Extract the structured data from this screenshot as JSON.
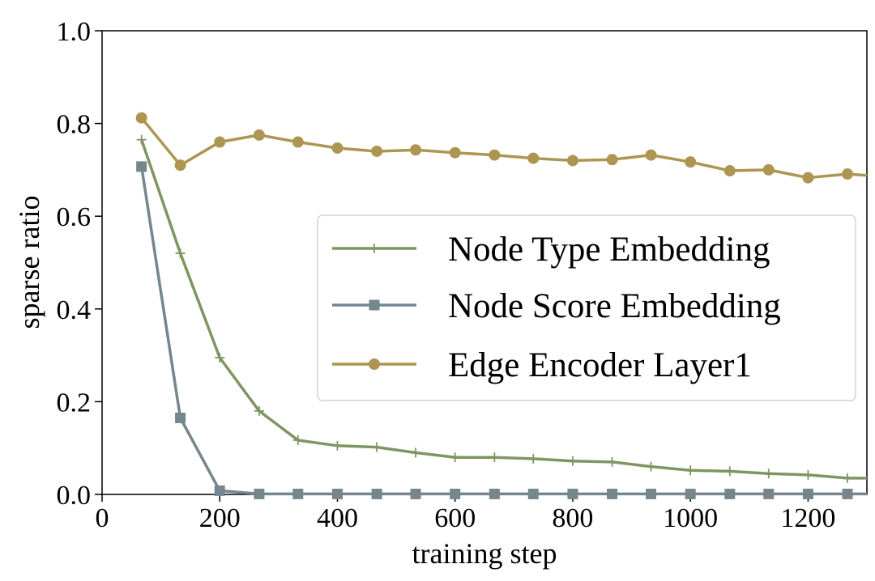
{
  "chart_data": {
    "type": "line",
    "title": "",
    "xlabel": "training step",
    "ylabel": "sparse ratio",
    "xlim": [
      0,
      1300
    ],
    "ylim": [
      0.0,
      1.0
    ],
    "xticks": [
      0,
      200,
      400,
      600,
      800,
      1000,
      1200
    ],
    "xtick_labels": [
      "0",
      "200",
      "400",
      "600",
      "800",
      "1000",
      "1200"
    ],
    "yticks": [
      0.0,
      0.2,
      0.4,
      0.6,
      0.8,
      1.0
    ],
    "ytick_labels": [
      "0.0",
      "0.2",
      "0.4",
      "0.6",
      "0.8",
      "1.0"
    ],
    "grid": false,
    "legend_position": "center-right",
    "x": [
      67,
      133,
      200,
      267,
      333,
      400,
      467,
      533,
      600,
      667,
      733,
      800,
      867,
      933,
      1000,
      1067,
      1133,
      1200,
      1267,
      1300
    ],
    "series": [
      {
        "name": "Node Type Embedding",
        "color": "#7f9562",
        "marker": "plus",
        "values": [
          0.765,
          0.52,
          0.295,
          0.18,
          0.117,
          0.105,
          0.102,
          0.09,
          0.08,
          0.08,
          0.077,
          0.072,
          0.07,
          0.06,
          0.052,
          0.05,
          0.045,
          0.042,
          0.035,
          0.035
        ]
      },
      {
        "name": "Node Score Embedding",
        "color": "#75868f",
        "marker": "square",
        "values": [
          0.707,
          0.165,
          0.008,
          0.001,
          0.001,
          0.001,
          0.001,
          0.001,
          0.001,
          0.001,
          0.001,
          0.001,
          0.001,
          0.001,
          0.001,
          0.001,
          0.001,
          0.001,
          0.001,
          0.001
        ]
      },
      {
        "name": "Edge Encoder Layer1",
        "color": "#ad9552",
        "marker": "circle",
        "values": [
          0.812,
          0.71,
          0.76,
          0.775,
          0.76,
          0.747,
          0.74,
          0.743,
          0.737,
          0.732,
          0.725,
          0.72,
          0.722,
          0.732,
          0.717,
          0.698,
          0.7,
          0.683,
          0.691,
          0.688
        ]
      }
    ]
  }
}
